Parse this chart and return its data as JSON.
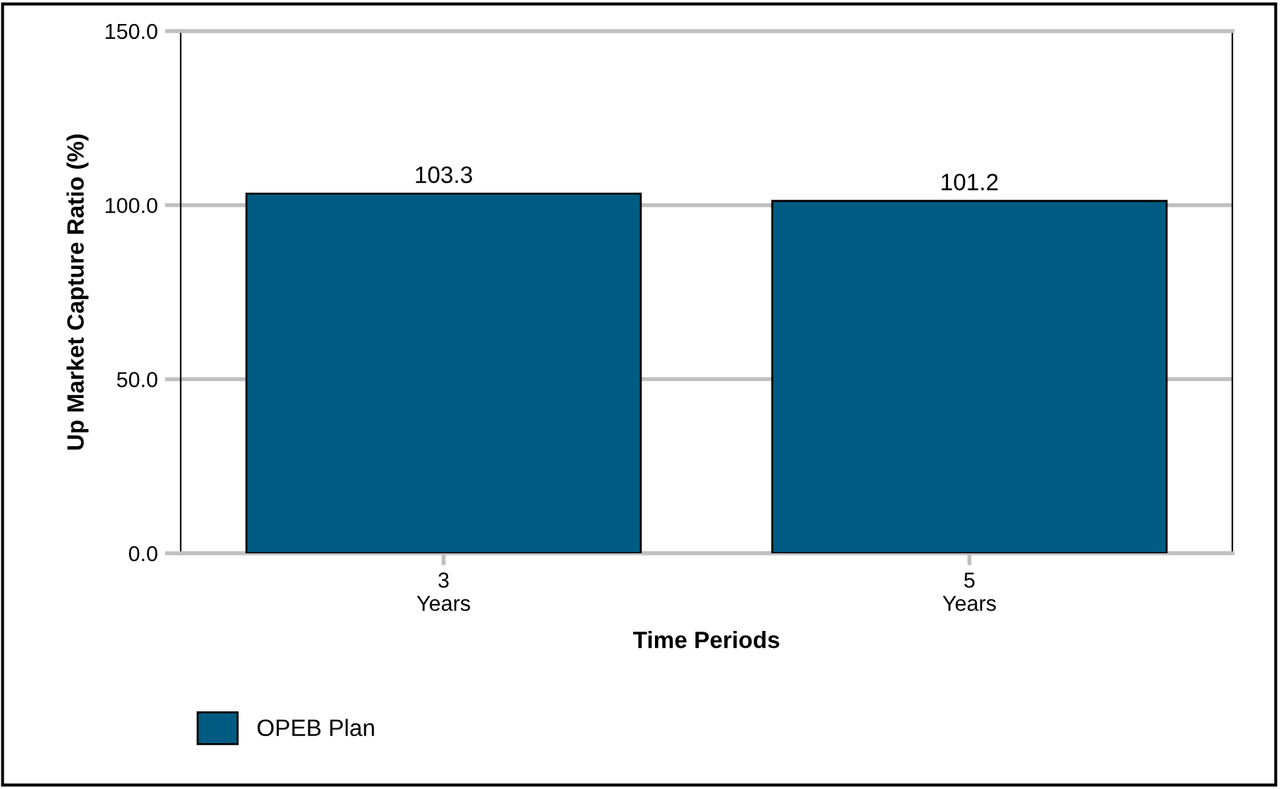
{
  "chart_data": {
    "type": "bar",
    "xlabel": "Time Periods",
    "ylabel": "Up Market Capture Ratio (%)",
    "categories": [
      "3\nYears",
      "5\nYears"
    ],
    "series": [
      {
        "name": "OPEB Plan",
        "color": "#005b82",
        "values": [
          103.3,
          101.2
        ]
      }
    ],
    "ylim": [
      0,
      150
    ],
    "yticks": [
      {
        "value": 0,
        "label": "0.0"
      },
      {
        "value": 50,
        "label": "50.0"
      },
      {
        "value": 100,
        "label": "100.0"
      },
      {
        "value": 150,
        "label": "150.0"
      }
    ],
    "grid": "y",
    "legend": "bottom left",
    "data_labels": true
  }
}
